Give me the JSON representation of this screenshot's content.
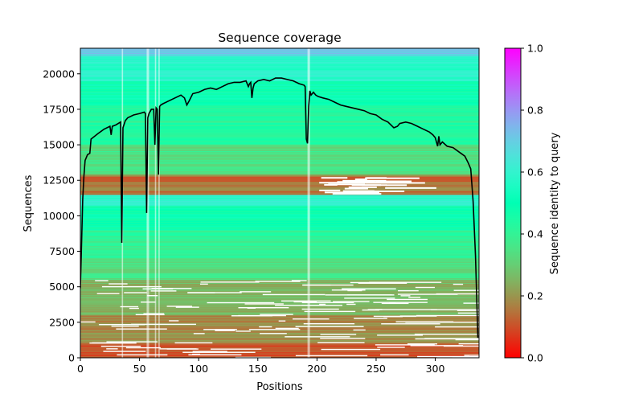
{
  "chart_data": {
    "type": "heatmap",
    "title": "Sequence coverage",
    "xlabel": "Positions",
    "ylabel": "Sequences",
    "xlim": [
      0,
      337
    ],
    "ylim": [
      0,
      21800
    ],
    "x_ticks": [
      0,
      50,
      100,
      150,
      200,
      250,
      300
    ],
    "y_ticks": [
      0,
      2500,
      5000,
      7500,
      10000,
      12500,
      15000,
      17500,
      20000
    ],
    "colorbar": {
      "label": "Sequence identity to query",
      "range": [
        0,
        1
      ],
      "ticks": [
        0.0,
        0.2,
        0.4,
        0.6,
        0.8,
        1.0
      ],
      "colormap": "rainbow_r",
      "colors": [
        "#ff0000",
        "#ff8040",
        "#c0e060",
        "#80ffa0",
        "#40e0e0",
        "#00a0ff",
        "#4060ff",
        "#8000ff"
      ]
    },
    "identity_bands": [
      {
        "from": 0,
        "to": 1000,
        "identity": 0.1
      },
      {
        "from": 1000,
        "to": 3000,
        "identity": 0.18
      },
      {
        "from": 3000,
        "to": 5500,
        "identity": 0.25
      },
      {
        "from": 5500,
        "to": 7000,
        "identity": 0.34
      },
      {
        "from": 7000,
        "to": 9000,
        "identity": 0.4
      },
      {
        "from": 9000,
        "to": 10700,
        "identity": 0.48
      },
      {
        "from": 10700,
        "to": 11500,
        "identity": 0.6
      },
      {
        "from": 11500,
        "to": 12900,
        "identity": 0.15
      },
      {
        "from": 12900,
        "to": 15000,
        "identity": 0.35
      },
      {
        "from": 15000,
        "to": 17800,
        "identity": 0.42
      },
      {
        "from": 17800,
        "to": 19500,
        "identity": 0.5
      },
      {
        "from": 19500,
        "to": 21300,
        "identity": 0.58
      },
      {
        "from": 21300,
        "to": 21800,
        "identity": 0.7
      }
    ],
    "coverage_line": {
      "x": [
        0,
        2,
        3,
        4,
        6,
        8,
        9,
        15,
        20,
        25,
        26,
        27,
        30,
        34,
        35,
        36,
        38,
        40,
        45,
        50,
        54,
        55,
        56,
        57,
        58,
        60,
        62,
        63,
        64,
        65,
        66,
        67,
        68,
        70,
        75,
        80,
        85,
        88,
        90,
        92,
        95,
        100,
        105,
        110,
        115,
        120,
        125,
        130,
        135,
        140,
        142,
        143,
        144,
        145,
        146,
        147,
        150,
        155,
        160,
        165,
        170,
        175,
        180,
        185,
        189,
        190,
        191,
        192,
        193,
        194,
        195,
        197,
        199,
        201,
        205,
        210,
        215,
        220,
        225,
        230,
        235,
        240,
        245,
        250,
        255,
        260,
        265,
        268,
        270,
        275,
        280,
        285,
        290,
        295,
        298,
        300,
        302,
        303,
        304,
        306,
        310,
        315,
        320,
        325,
        328,
        330,
        332,
        334,
        336
      ],
      "y": [
        4900,
        11200,
        12800,
        13900,
        14300,
        14400,
        15400,
        15800,
        16100,
        16300,
        15700,
        16300,
        16400,
        16600,
        8100,
        16200,
        16700,
        16900,
        17100,
        17200,
        17300,
        17200,
        10200,
        16900,
        17200,
        17500,
        17500,
        15000,
        17600,
        17500,
        12900,
        17700,
        17800,
        17900,
        18100,
        18300,
        18500,
        18300,
        17800,
        18100,
        18600,
        18700,
        18900,
        19000,
        18900,
        19100,
        19300,
        19400,
        19400,
        19500,
        19100,
        19300,
        19400,
        18300,
        19000,
        19300,
        19500,
        19600,
        19500,
        19700,
        19700,
        19600,
        19500,
        19300,
        19200,
        19100,
        15400,
        15100,
        17700,
        18800,
        18500,
        18700,
        18500,
        18400,
        18300,
        18200,
        18000,
        17800,
        17700,
        17600,
        17500,
        17400,
        17200,
        17100,
        16800,
        16600,
        16200,
        16300,
        16500,
        16600,
        16500,
        16300,
        16100,
        15900,
        15700,
        15500,
        14900,
        15600,
        15000,
        15200,
        14900,
        14800,
        14500,
        14200,
        13700,
        13300,
        11000,
        7200,
        1400
      ]
    }
  }
}
